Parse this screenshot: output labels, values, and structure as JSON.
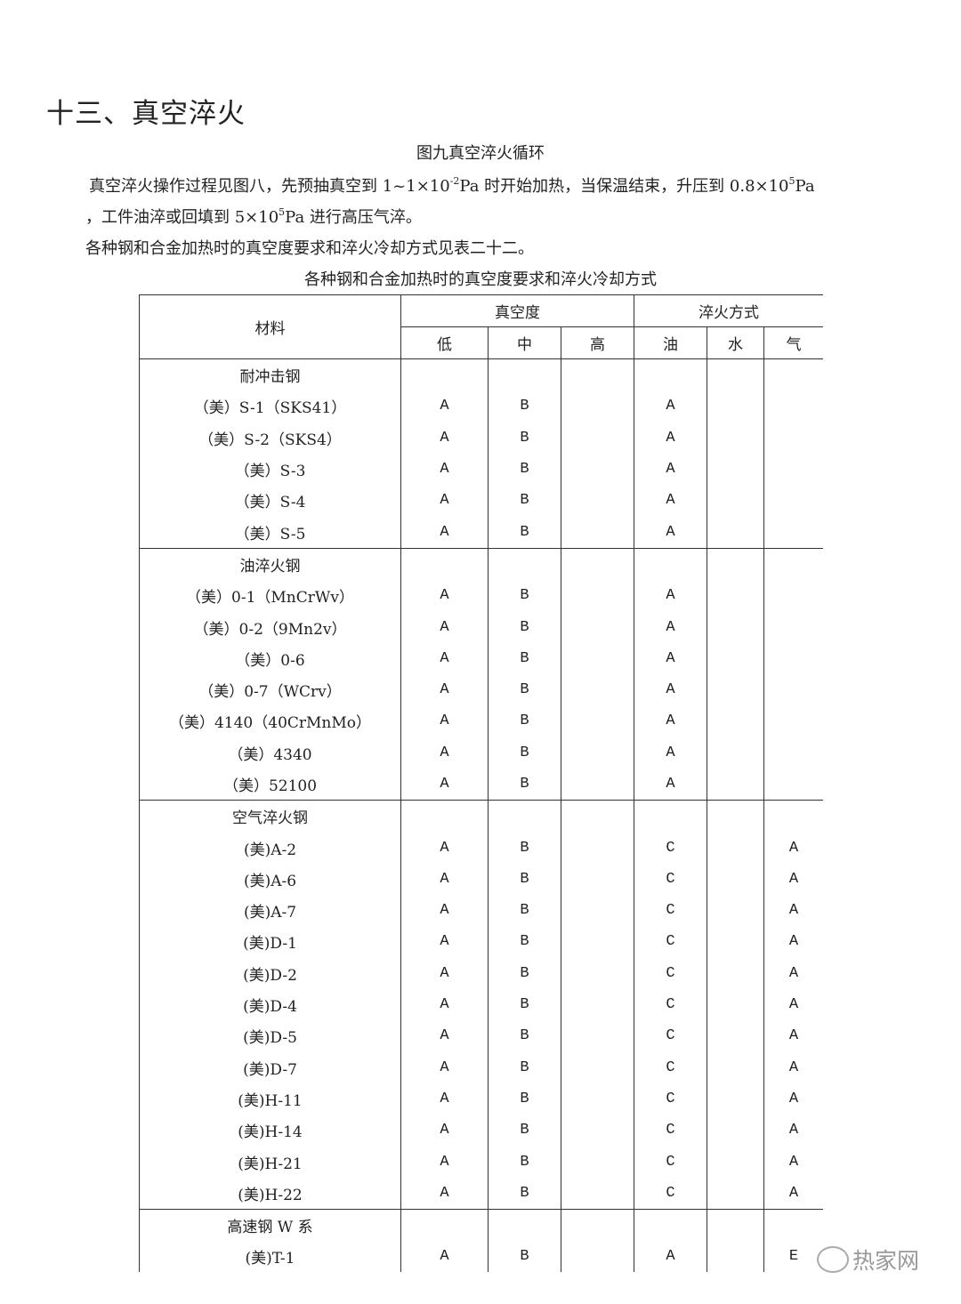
{
  "heading": "十三、真空淬火",
  "figure_caption": "图九真空淬火循环",
  "paragraph1": {
    "a": "真空淬火操作过程见图八，先预抽真空到 1~1×10",
    "sup1": "-2",
    "b": "Pa 时开始加热，当保温结束，升压到 0.8×10",
    "sup2": "5",
    "c": "Pa",
    "line2a": "，工件油淬或回填到 5×10",
    "sup3": "5",
    "line2b": "Pa 进行高压气淬。"
  },
  "paragraph2": "各种钢和合金加热时的真空度要求和淬火冷却方式见表二十二。",
  "table": {
    "title": "各种钢和合金加热时的真空度要求和淬火冷却方式",
    "header": {
      "material": "材料",
      "vacuum": "真空度",
      "quench": "淬火方式",
      "sub": [
        "低",
        "中",
        "高",
        "油",
        "水",
        "气"
      ]
    },
    "groups": [
      {
        "name": "耐冲击钢",
        "rows": [
          [
            "（美）S-1（SKS41）",
            "A",
            "B",
            "",
            "A",
            "",
            ""
          ],
          [
            "（美）S-2（SKS4）",
            "A",
            "B",
            "",
            "A",
            "",
            ""
          ],
          [
            "（美）S-3",
            "A",
            "B",
            "",
            "A",
            "",
            ""
          ],
          [
            "（美）S-4",
            "A",
            "B",
            "",
            "A",
            "",
            ""
          ],
          [
            "（美）S-5",
            "A",
            "B",
            "",
            "A",
            "",
            ""
          ]
        ]
      },
      {
        "name": "油淬火钢",
        "rows": [
          [
            "（美）0-1（MnCrWv）",
            "A",
            "B",
            "",
            "A",
            "",
            ""
          ],
          [
            "（美）0-2（9Mn2v）",
            "A",
            "B",
            "",
            "A",
            "",
            ""
          ],
          [
            "（美）0-6",
            "A",
            "B",
            "",
            "A",
            "",
            ""
          ],
          [
            "（美）0-7（WCrv）",
            "A",
            "B",
            "",
            "A",
            "",
            ""
          ],
          [
            "（美）4140（40CrMnMo）",
            "A",
            "B",
            "",
            "A",
            "",
            ""
          ],
          [
            "（美）4340",
            "A",
            "B",
            "",
            "A",
            "",
            ""
          ],
          [
            "（美）52100",
            "A",
            "B",
            "",
            "A",
            "",
            ""
          ]
        ]
      },
      {
        "name": "空气淬火钢",
        "rows": [
          [
            "(美)A-2",
            "A",
            "B",
            "",
            "C",
            "",
            "A"
          ],
          [
            "(美)A-6",
            "A",
            "B",
            "",
            "C",
            "",
            "A"
          ],
          [
            "(美)A-7",
            "A",
            "B",
            "",
            "C",
            "",
            "A"
          ],
          [
            "(美)D-1",
            "A",
            "B",
            "",
            "C",
            "",
            "A"
          ],
          [
            "(美)D-2",
            "A",
            "B",
            "",
            "C",
            "",
            "A"
          ],
          [
            "(美)D-4",
            "A",
            "B",
            "",
            "C",
            "",
            "A"
          ],
          [
            "(美)D-5",
            "A",
            "B",
            "",
            "C",
            "",
            "A"
          ],
          [
            "(美)D-7",
            "A",
            "B",
            "",
            "C",
            "",
            "A"
          ],
          [
            "(美)H-11",
            "A",
            "B",
            "",
            "C",
            "",
            "A"
          ],
          [
            "(美)H-14",
            "A",
            "B",
            "",
            "C",
            "",
            "A"
          ],
          [
            "(美)H-21",
            "A",
            "B",
            "",
            "C",
            "",
            "A"
          ],
          [
            "(美)H-22",
            "A",
            "B",
            "",
            "C",
            "",
            "A"
          ]
        ]
      },
      {
        "name": "高速钢 W 系",
        "rows": [
          [
            "(美)T-1",
            "A",
            "B",
            "",
            "A",
            "",
            "E"
          ],
          [
            "",
            "",
            "",
            "",
            "",
            "",
            ""
          ]
        ]
      }
    ]
  },
  "watermark": "热家网"
}
